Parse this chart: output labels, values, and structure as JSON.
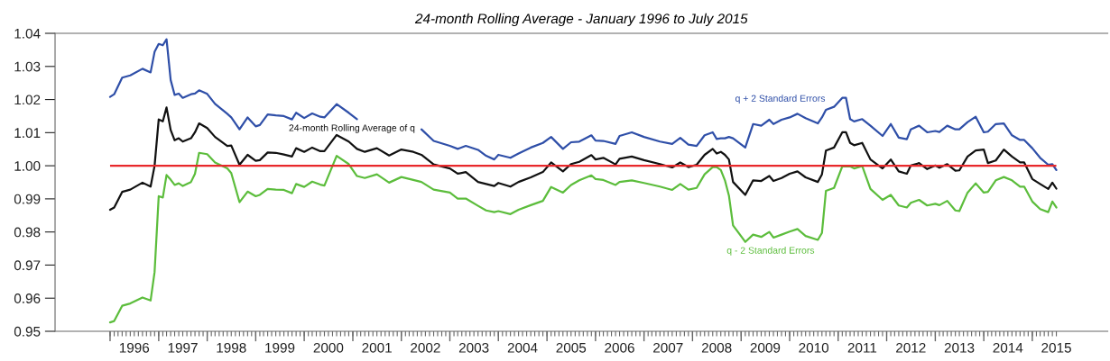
{
  "chart_data": {
    "type": "line",
    "title": "24-month Rolling Average - January 1996 to July 2015",
    "x": [
      "1996-01",
      "1996-02",
      "1996-04",
      "1996-06",
      "1996-09",
      "1996-11",
      "1996-12",
      "1997-01",
      "1997-02",
      "1997-03",
      "1997-04",
      "1997-05",
      "1997-06",
      "1997-07",
      "1997-09",
      "1997-10",
      "1997-11",
      "1998-01",
      "1998-03",
      "1998-06",
      "1998-07",
      "1998-09",
      "1998-11",
      "1999-01",
      "1999-02",
      "1999-04",
      "1999-06",
      "1999-08",
      "1999-10",
      "1999-11",
      "2000-01",
      "2000-03",
      "2000-05",
      "2000-06",
      "2000-09",
      "2000-12",
      "2001-02",
      "2001-04",
      "2001-07",
      "2001-10",
      "2002-01",
      "2002-04",
      "2002-06",
      "2002-09",
      "2003-01",
      "2003-03",
      "2003-05",
      "2003-08",
      "2003-10",
      "2003-12",
      "2004-01",
      "2004-04",
      "2004-06",
      "2004-09",
      "2004-12",
      "2005-02",
      "2005-05",
      "2005-07",
      "2005-09",
      "2005-12",
      "2006-01",
      "2006-03",
      "2006-06",
      "2006-07",
      "2006-10",
      "2007-01",
      "2007-05",
      "2007-08",
      "2007-10",
      "2007-12",
      "2008-02",
      "2008-04",
      "2008-06",
      "2008-07",
      "2008-08",
      "2008-09",
      "2008-10",
      "2008-11",
      "2009-02",
      "2009-04",
      "2009-06",
      "2009-08",
      "2009-09",
      "2009-11",
      "2010-01",
      "2010-03",
      "2010-05",
      "2010-08",
      "2010-09",
      "2010-10",
      "2010-12",
      "2011-02",
      "2011-03",
      "2011-04",
      "2011-05",
      "2011-07",
      "2011-09",
      "2011-12",
      "2012-02",
      "2012-04",
      "2012-06",
      "2012-07",
      "2012-09",
      "2012-11",
      "2013-01",
      "2013-02",
      "2013-04",
      "2013-06",
      "2013-07",
      "2013-09",
      "2013-11",
      "2014-01",
      "2014-02",
      "2014-04",
      "2014-06",
      "2014-08",
      "2014-10",
      "2014-11",
      "2015-01",
      "2015-03",
      "2015-05",
      "2015-06",
      "2015-07"
    ],
    "series": [
      {
        "name": "24-month Rolling Average of q",
        "color": "#111111",
        "values": [
          0.9867,
          0.9874,
          0.9921,
          0.9928,
          0.9949,
          0.9937,
          1.0,
          1.014,
          1.0134,
          1.0176,
          1.0108,
          1.0077,
          1.0083,
          1.0073,
          1.0083,
          1.0101,
          1.0128,
          1.0114,
          1.0087,
          1.006,
          1.0061,
          1.0003,
          1.0033,
          1.0015,
          1.0017,
          1.004,
          1.0039,
          1.0034,
          1.0028,
          1.0053,
          1.0042,
          1.0055,
          1.0044,
          1.0044,
          1.0093,
          1.0073,
          1.0051,
          1.0042,
          1.0053,
          1.0031,
          1.0049,
          1.0042,
          1.0033,
          1.0004,
          0.9992,
          0.9976,
          0.9981,
          0.9951,
          0.9945,
          0.9939,
          0.9948,
          0.9937,
          0.9951,
          0.9965,
          0.9981,
          1.001,
          0.9983,
          1.0005,
          1.0012,
          1.0032,
          1.0019,
          1.0024,
          1.0004,
          1.0021,
          1.0028,
          1.0017,
          1.0005,
          0.9995,
          1.001,
          0.9996,
          1.0003,
          1.0033,
          1.0051,
          1.0037,
          1.0042,
          1.0033,
          1.0019,
          0.9951,
          0.9912,
          0.9956,
          0.9954,
          0.9969,
          0.9954,
          0.9963,
          0.9976,
          0.9983,
          0.9965,
          0.9951,
          0.9974,
          1.0046,
          1.0055,
          1.0101,
          1.0101,
          1.0069,
          1.0062,
          1.0069,
          1.0019,
          0.9992,
          1.0019,
          0.9983,
          0.9976,
          1.0001,
          1.0008,
          0.999,
          1.0001,
          0.9994,
          1.0005,
          0.9985,
          0.9986,
          1.0028,
          1.0046,
          1.0049,
          1.0008,
          1.0016,
          1.0049,
          1.0028,
          1.001,
          1.001,
          0.996,
          0.9945,
          0.993,
          0.9949,
          0.9931
        ]
      },
      {
        "name": "q + 2 Standard Errors",
        "color": "#2f4fa8",
        "values": [
          1.0208,
          1.0216,
          1.0266,
          1.0273,
          1.0293,
          1.0282,
          1.0344,
          1.0368,
          1.0364,
          1.0382,
          1.0259,
          1.0214,
          1.0218,
          1.0205,
          1.0216,
          1.0218,
          1.0228,
          1.0217,
          1.0187,
          1.0157,
          1.0146,
          1.011,
          1.0146,
          1.0119,
          1.0123,
          1.0155,
          1.0152,
          1.015,
          1.014,
          1.016,
          1.0144,
          1.0158,
          1.0148,
          1.0146,
          1.0186,
          1.016,
          1.0141,
          null,
          null,
          null,
          null,
          null,
          1.011,
          1.0075,
          1.006,
          1.0051,
          1.006,
          1.0048,
          1.003,
          1.0019,
          1.0033,
          1.0024,
          1.0037,
          1.0055,
          1.0069,
          1.0087,
          1.0051,
          1.0071,
          1.0073,
          1.0092,
          1.0076,
          1.0075,
          1.0066,
          1.009,
          1.0101,
          1.0087,
          1.0073,
          1.0066,
          1.0084,
          1.0064,
          1.006,
          1.0092,
          1.0101,
          1.0081,
          1.0083,
          1.0083,
          1.0087,
          1.0083,
          1.0055,
          1.0126,
          1.0121,
          1.0139,
          1.0126,
          1.0139,
          1.0146,
          1.0157,
          1.0144,
          1.0128,
          1.0146,
          1.0169,
          1.0178,
          1.0205,
          1.0205,
          1.0141,
          1.0134,
          1.0141,
          1.0121,
          1.009,
          1.0126,
          1.0085,
          1.008,
          1.011,
          1.0121,
          1.0101,
          1.0105,
          1.0102,
          1.0121,
          1.011,
          1.011,
          1.0132,
          1.0148,
          1.0101,
          1.0103,
          1.0126,
          1.0128,
          1.0092,
          1.0078,
          1.0078,
          1.0053,
          1.0024,
          1.0003,
          1.0005,
          0.9987
        ]
      },
      {
        "name": "q - 2 Standard Errors",
        "color": "#5cbd3c",
        "values": [
          0.9527,
          0.9531,
          0.9577,
          0.9584,
          0.9602,
          0.9593,
          0.9679,
          0.9908,
          0.9904,
          0.9972,
          0.9958,
          0.9942,
          0.9947,
          0.9939,
          0.9951,
          0.9976,
          1.0039,
          1.0035,
          1.001,
          0.9992,
          0.9978,
          0.989,
          0.9922,
          0.9908,
          0.9912,
          0.993,
          0.9928,
          0.9927,
          0.9917,
          0.9945,
          0.9936,
          0.9952,
          0.9943,
          0.994,
          1.003,
          1.0005,
          0.9969,
          0.9963,
          0.9974,
          0.9949,
          0.9966,
          0.9957,
          0.9951,
          0.9928,
          0.9919,
          0.9901,
          0.9901,
          0.9879,
          0.9865,
          0.986,
          0.9863,
          0.9854,
          0.9867,
          0.9881,
          0.9894,
          0.9936,
          0.9919,
          0.9942,
          0.9956,
          0.9971,
          0.996,
          0.9957,
          0.9942,
          0.9951,
          0.9956,
          0.9948,
          0.9937,
          0.9927,
          0.9945,
          0.9928,
          0.9933,
          0.9974,
          0.9996,
          0.9996,
          0.9987,
          0.9956,
          0.991,
          0.982,
          0.977,
          0.9792,
          0.9785,
          0.98,
          0.9783,
          0.9792,
          0.9801,
          0.9809,
          0.9788,
          0.9776,
          0.9797,
          0.9924,
          0.9933,
          0.9998,
          0.9998,
          0.9998,
          0.9992,
          0.9999,
          0.993,
          0.9897,
          0.9912,
          0.988,
          0.9874,
          0.9888,
          0.9897,
          0.988,
          0.9885,
          0.9881,
          0.9894,
          0.9865,
          0.9863,
          0.9919,
          0.9947,
          0.9919,
          0.9921,
          0.9956,
          0.9966,
          0.9956,
          0.9937,
          0.9937,
          0.9892,
          0.9869,
          0.986,
          0.9892,
          0.9874
        ]
      }
    ],
    "ref_lines": [
      {
        "axis": "y",
        "value": 1.0,
        "color": "#e8282b"
      }
    ],
    "xlim": [
      "1994-11-13",
      "2016-07-22"
    ],
    "xticks": [
      {
        "value": "1996-01-01",
        "label": null
      },
      {
        "value": "1996-07-01",
        "label": "1996"
      },
      {
        "value": "1997-01-01",
        "label": null
      },
      {
        "value": "1997-07-01",
        "label": "1997"
      },
      {
        "value": "1998-01-01",
        "label": null
      },
      {
        "value": "1998-07-01",
        "label": "1998"
      },
      {
        "value": "1999-01-01",
        "label": null
      },
      {
        "value": "1999-07-01",
        "label": "1999"
      },
      {
        "value": "2000-01-01",
        "label": null
      },
      {
        "value": "2000-07-01",
        "label": "2000"
      },
      {
        "value": "2001-01-01",
        "label": null
      },
      {
        "value": "2001-07-01",
        "label": "2001"
      },
      {
        "value": "2002-01-01",
        "label": null
      },
      {
        "value": "2002-07-01",
        "label": "2002"
      },
      {
        "value": "2003-01-01",
        "label": null
      },
      {
        "value": "2003-07-01",
        "label": "2003"
      },
      {
        "value": "2004-01-01",
        "label": null
      },
      {
        "value": "2004-07-01",
        "label": "2004"
      },
      {
        "value": "2005-01-01",
        "label": null
      },
      {
        "value": "2005-07-01",
        "label": "2005"
      },
      {
        "value": "2006-01-01",
        "label": null
      },
      {
        "value": "2006-07-01",
        "label": "2006"
      },
      {
        "value": "2007-01-01",
        "label": null
      },
      {
        "value": "2007-07-01",
        "label": "2007"
      },
      {
        "value": "2008-01-01",
        "label": null
      },
      {
        "value": "2008-07-01",
        "label": "2008"
      },
      {
        "value": "2009-01-01",
        "label": null
      },
      {
        "value": "2009-07-01",
        "label": "2009"
      },
      {
        "value": "2010-01-01",
        "label": null
      },
      {
        "value": "2010-07-01",
        "label": "2010"
      },
      {
        "value": "2011-01-01",
        "label": null
      },
      {
        "value": "2011-07-01",
        "label": "2011"
      },
      {
        "value": "2012-01-01",
        "label": null
      },
      {
        "value": "2012-07-01",
        "label": "2012"
      },
      {
        "value": "2013-01-01",
        "label": null
      },
      {
        "value": "2013-07-01",
        "label": "2013"
      },
      {
        "value": "2014-01-01",
        "label": null
      },
      {
        "value": "2014-07-01",
        "label": "2014"
      },
      {
        "value": "2015-01-01",
        "label": null
      },
      {
        "value": "2015-07-01",
        "label": "2015"
      }
    ],
    "ylim": [
      0.95,
      1.04
    ],
    "yticks": [
      0.95,
      0.96,
      0.97,
      0.98,
      0.99,
      {
        "value": 1.0,
        "label": "1.00"
      },
      1.01,
      1.02,
      1.03,
      1.04
    ],
    "marker": "none",
    "line_style": "solid",
    "grid": false,
    "legend": false
  }
}
